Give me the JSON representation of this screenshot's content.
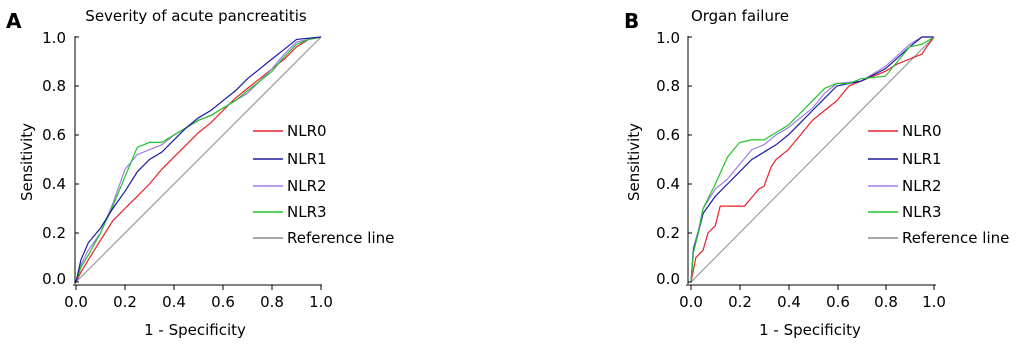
{
  "chart_data": [
    {
      "panel_label": "A",
      "type": "line",
      "title": "Severity of acute pancreatitis",
      "xlabel": "1 - Specificity",
      "ylabel": "Sensitivity",
      "xlim": [
        0,
        1
      ],
      "ylim": [
        0,
        1
      ],
      "xticks": [
        "0.0",
        "0.2",
        "0.4",
        "0.6",
        "0.8",
        "1.0"
      ],
      "yticks": [
        "0.0",
        "0.2",
        "0.4",
        "0.6",
        "0.8",
        "1.0"
      ],
      "legend_position": "right-center",
      "series": [
        {
          "name": "NLR0",
          "color": "#e8202a",
          "points": [
            [
              0,
              0
            ],
            [
              0.02,
              0.04
            ],
            [
              0.05,
              0.09
            ],
            [
              0.1,
              0.17
            ],
            [
              0.15,
              0.25
            ],
            [
              0.2,
              0.3
            ],
            [
              0.25,
              0.35
            ],
            [
              0.3,
              0.4
            ],
            [
              0.35,
              0.46
            ],
            [
              0.4,
              0.51
            ],
            [
              0.45,
              0.56
            ],
            [
              0.5,
              0.61
            ],
            [
              0.55,
              0.65
            ],
            [
              0.6,
              0.7
            ],
            [
              0.65,
              0.75
            ],
            [
              0.7,
              0.79
            ],
            [
              0.75,
              0.83
            ],
            [
              0.8,
              0.87
            ],
            [
              0.85,
              0.91
            ],
            [
              0.9,
              0.96
            ],
            [
              0.95,
              0.99
            ],
            [
              1,
              1
            ]
          ]
        },
        {
          "name": "NLR1",
          "color": "#1a1aa6",
          "points": [
            [
              0,
              0
            ],
            [
              0.02,
              0.09
            ],
            [
              0.05,
              0.16
            ],
            [
              0.1,
              0.22
            ],
            [
              0.15,
              0.3
            ],
            [
              0.2,
              0.37
            ],
            [
              0.25,
              0.45
            ],
            [
              0.3,
              0.5
            ],
            [
              0.35,
              0.53
            ],
            [
              0.4,
              0.58
            ],
            [
              0.45,
              0.63
            ],
            [
              0.5,
              0.67
            ],
            [
              0.55,
              0.7
            ],
            [
              0.6,
              0.74
            ],
            [
              0.65,
              0.78
            ],
            [
              0.7,
              0.83
            ],
            [
              0.75,
              0.87
            ],
            [
              0.8,
              0.91
            ],
            [
              0.85,
              0.95
            ],
            [
              0.9,
              0.99
            ],
            [
              1,
              1
            ]
          ]
        },
        {
          "name": "NLR2",
          "color": "#a07ce6",
          "points": [
            [
              0,
              0
            ],
            [
              0.02,
              0.07
            ],
            [
              0.05,
              0.13
            ],
            [
              0.1,
              0.2
            ],
            [
              0.15,
              0.32
            ],
            [
              0.2,
              0.46
            ],
            [
              0.25,
              0.52
            ],
            [
              0.3,
              0.54
            ],
            [
              0.35,
              0.56
            ],
            [
              0.4,
              0.6
            ],
            [
              0.45,
              0.63
            ],
            [
              0.5,
              0.66
            ],
            [
              0.55,
              0.68
            ],
            [
              0.6,
              0.71
            ],
            [
              0.65,
              0.74
            ],
            [
              0.7,
              0.77
            ],
            [
              0.75,
              0.82
            ],
            [
              0.8,
              0.87
            ],
            [
              0.85,
              0.93
            ],
            [
              0.9,
              0.98
            ],
            [
              1,
              1
            ]
          ]
        },
        {
          "name": "NLR3",
          "color": "#22c42a",
          "points": [
            [
              0,
              0
            ],
            [
              0.02,
              0.06
            ],
            [
              0.05,
              0.11
            ],
            [
              0.1,
              0.2
            ],
            [
              0.15,
              0.31
            ],
            [
              0.2,
              0.43
            ],
            [
              0.25,
              0.55
            ],
            [
              0.3,
              0.57
            ],
            [
              0.35,
              0.57
            ],
            [
              0.4,
              0.6
            ],
            [
              0.45,
              0.63
            ],
            [
              0.5,
              0.66
            ],
            [
              0.55,
              0.68
            ],
            [
              0.6,
              0.71
            ],
            [
              0.65,
              0.74
            ],
            [
              0.7,
              0.78
            ],
            [
              0.75,
              0.82
            ],
            [
              0.8,
              0.86
            ],
            [
              0.85,
              0.92
            ],
            [
              0.9,
              0.97
            ],
            [
              0.95,
              0.99
            ],
            [
              1,
              1
            ]
          ]
        },
        {
          "name": "Reference line",
          "color": "#8c8c8c",
          "points": [
            [
              0,
              0
            ],
            [
              1,
              1
            ]
          ]
        }
      ]
    },
    {
      "panel_label": "B",
      "type": "line",
      "title": "Organ failure",
      "xlabel": "1 - Specificity",
      "ylabel": "Sensitivity",
      "xlim": [
        0,
        1
      ],
      "ylim": [
        0,
        1
      ],
      "xticks": [
        "0.0",
        "0.2",
        "0.4",
        "0.6",
        "0.8",
        "1.0"
      ],
      "yticks": [
        "0.0",
        "0.2",
        "0.4",
        "0.6",
        "0.8",
        "1.0"
      ],
      "legend_position": "right-center",
      "series": [
        {
          "name": "NLR0",
          "color": "#e8202a",
          "points": [
            [
              0,
              0
            ],
            [
              0.02,
              0.1
            ],
            [
              0.05,
              0.13
            ],
            [
              0.07,
              0.2
            ],
            [
              0.1,
              0.23
            ],
            [
              0.12,
              0.31
            ],
            [
              0.22,
              0.31
            ],
            [
              0.28,
              0.38
            ],
            [
              0.3,
              0.39
            ],
            [
              0.33,
              0.47
            ],
            [
              0.35,
              0.5
            ],
            [
              0.4,
              0.54
            ],
            [
              0.45,
              0.6
            ],
            [
              0.5,
              0.66
            ],
            [
              0.55,
              0.7
            ],
            [
              0.6,
              0.74
            ],
            [
              0.65,
              0.8
            ],
            [
              0.7,
              0.82
            ],
            [
              0.8,
              0.86
            ],
            [
              0.85,
              0.89
            ],
            [
              0.9,
              0.91
            ],
            [
              0.95,
              0.93
            ],
            [
              0.97,
              0.96
            ],
            [
              1,
              1
            ]
          ]
        },
        {
          "name": "NLR1",
          "color": "#1a1aa6",
          "points": [
            [
              0,
              0
            ],
            [
              0.01,
              0.13
            ],
            [
              0.03,
              0.2
            ],
            [
              0.05,
              0.28
            ],
            [
              0.1,
              0.35
            ],
            [
              0.15,
              0.4
            ],
            [
              0.2,
              0.45
            ],
            [
              0.25,
              0.5
            ],
            [
              0.3,
              0.53
            ],
            [
              0.35,
              0.56
            ],
            [
              0.4,
              0.6
            ],
            [
              0.45,
              0.65
            ],
            [
              0.5,
              0.7
            ],
            [
              0.55,
              0.75
            ],
            [
              0.6,
              0.8
            ],
            [
              0.7,
              0.82
            ],
            [
              0.8,
              0.87
            ],
            [
              0.9,
              0.96
            ],
            [
              0.95,
              1
            ],
            [
              1,
              1
            ]
          ]
        },
        {
          "name": "NLR2",
          "color": "#a07ce6",
          "points": [
            [
              0,
              0
            ],
            [
              0.01,
              0.14
            ],
            [
              0.03,
              0.21
            ],
            [
              0.05,
              0.3
            ],
            [
              0.1,
              0.38
            ],
            [
              0.15,
              0.42
            ],
            [
              0.2,
              0.48
            ],
            [
              0.25,
              0.54
            ],
            [
              0.3,
              0.56
            ],
            [
              0.35,
              0.6
            ],
            [
              0.4,
              0.63
            ],
            [
              0.45,
              0.67
            ],
            [
              0.5,
              0.71
            ],
            [
              0.55,
              0.77
            ],
            [
              0.6,
              0.81
            ],
            [
              0.7,
              0.82
            ],
            [
              0.8,
              0.88
            ],
            [
              0.9,
              0.97
            ],
            [
              0.95,
              1
            ],
            [
              1,
              1
            ]
          ]
        },
        {
          "name": "NLR3",
          "color": "#22c42a",
          "points": [
            [
              0,
              0
            ],
            [
              0.01,
              0.12
            ],
            [
              0.03,
              0.2
            ],
            [
              0.05,
              0.3
            ],
            [
              0.1,
              0.4
            ],
            [
              0.15,
              0.51
            ],
            [
              0.2,
              0.57
            ],
            [
              0.25,
              0.58
            ],
            [
              0.3,
              0.58
            ],
            [
              0.35,
              0.61
            ],
            [
              0.4,
              0.64
            ],
            [
              0.45,
              0.69
            ],
            [
              0.5,
              0.74
            ],
            [
              0.55,
              0.79
            ],
            [
              0.6,
              0.81
            ],
            [
              0.65,
              0.81
            ],
            [
              0.7,
              0.83
            ],
            [
              0.8,
              0.84
            ],
            [
              0.85,
              0.9
            ],
            [
              0.9,
              0.96
            ],
            [
              0.95,
              0.97
            ],
            [
              1,
              1
            ]
          ]
        },
        {
          "name": "Reference line",
          "color": "#8c8c8c",
          "points": [
            [
              0,
              0
            ],
            [
              1,
              1
            ]
          ]
        }
      ]
    }
  ]
}
